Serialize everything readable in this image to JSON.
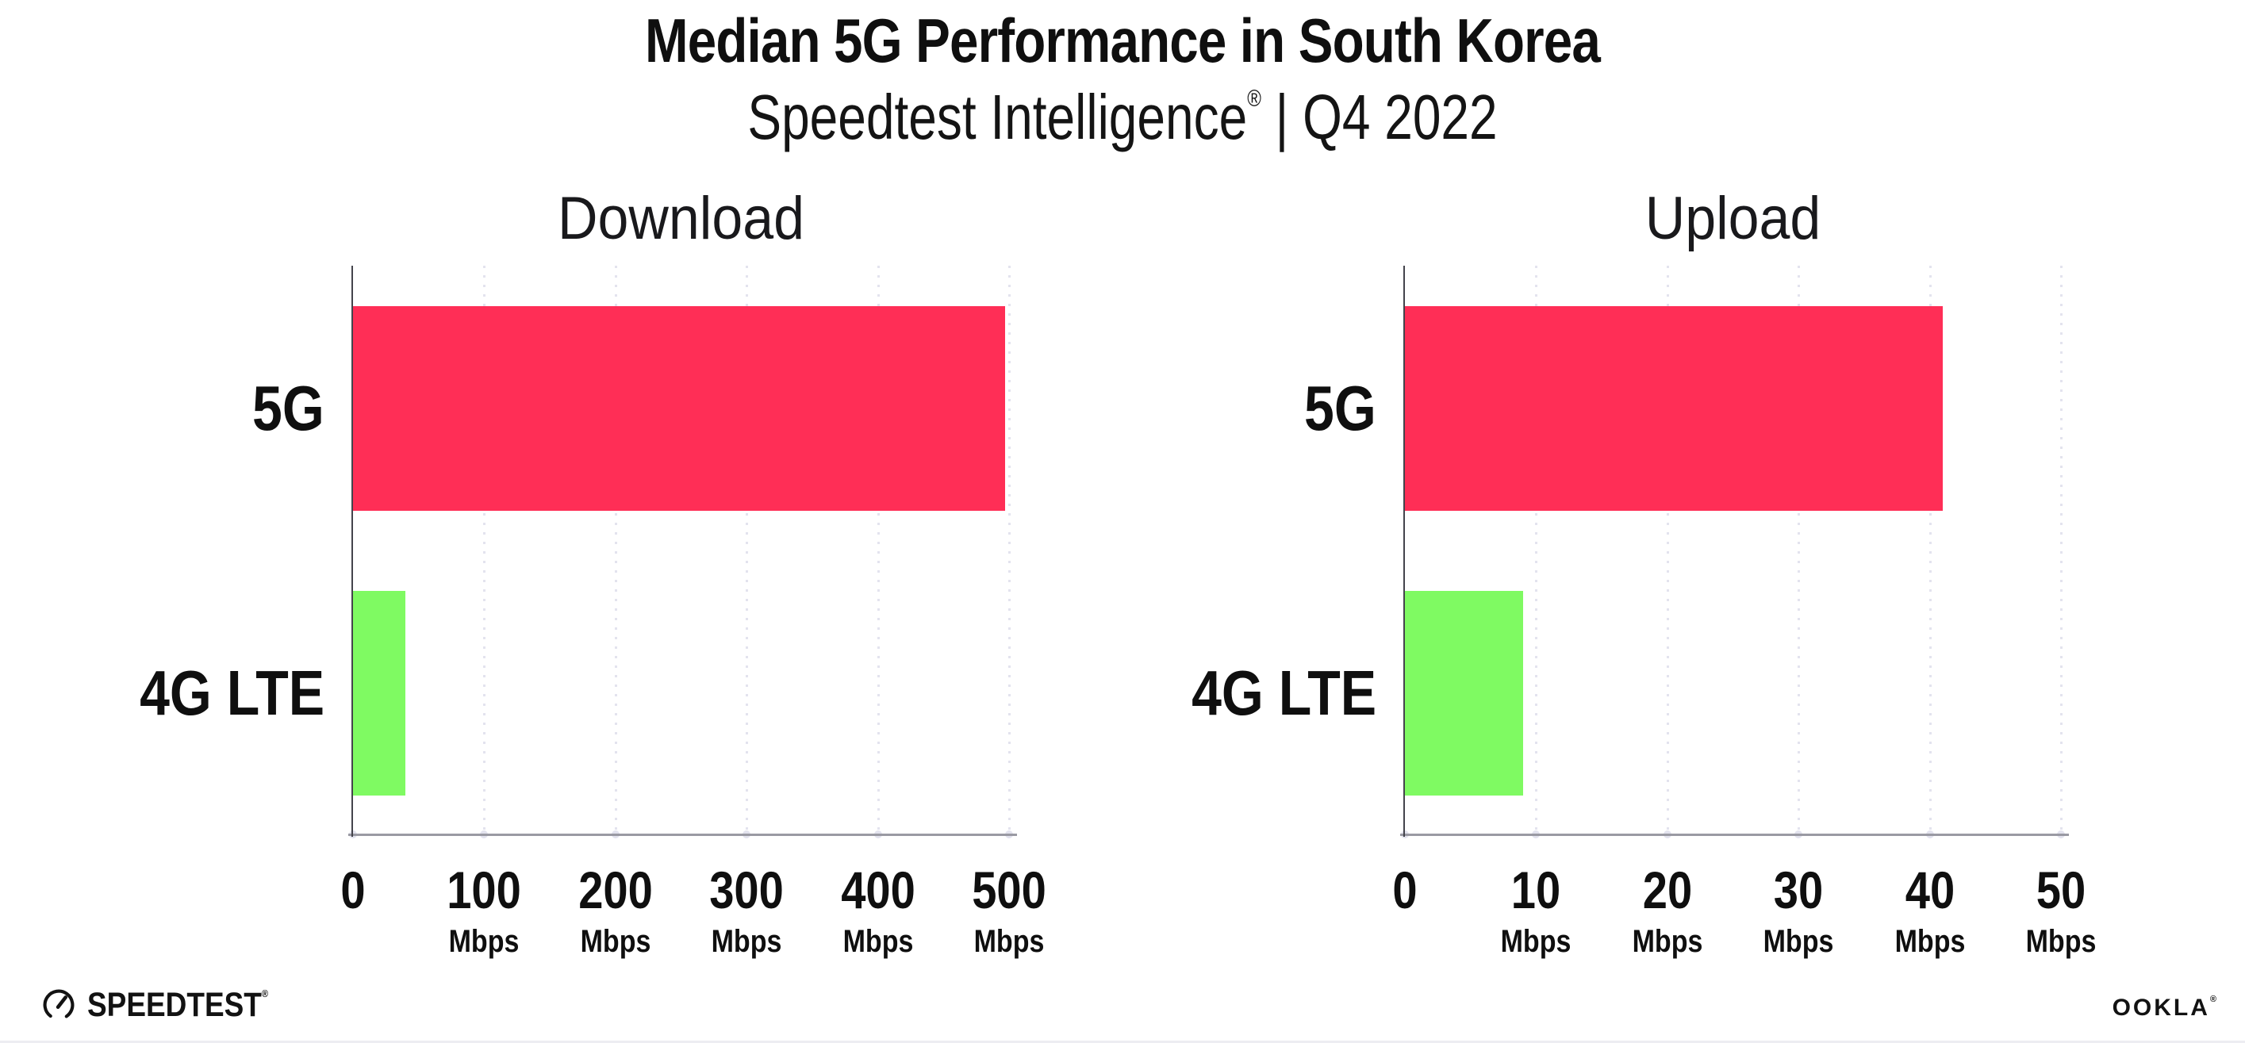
{
  "header": {
    "title": "Median 5G Performance in South Korea",
    "subtitle_main": "Speedtest Intelligence",
    "subtitle_reg": "®",
    "subtitle_rest": " | Q4 2022"
  },
  "chart_data": [
    {
      "type": "bar",
      "orientation": "horizontal",
      "title": "Download",
      "categories": [
        "5G",
        "4G LTE"
      ],
      "values": [
        497,
        40
      ],
      "unit": "Mbps",
      "xlim": [
        0,
        500
      ],
      "ticks": [
        0,
        100,
        200,
        300,
        400,
        500
      ],
      "bar_colors": [
        "#FF2E56",
        "#7FFA62"
      ],
      "grid": "dotted-vertical",
      "legend": "none"
    },
    {
      "type": "bar",
      "orientation": "horizontal",
      "title": "Upload",
      "categories": [
        "5G",
        "4G LTE"
      ],
      "values": [
        41,
        9
      ],
      "unit": "Mbps",
      "xlim": [
        0,
        50
      ],
      "ticks": [
        0,
        10,
        20,
        30,
        40,
        50
      ],
      "bar_colors": [
        "#FF2E56",
        "#7FFA62"
      ],
      "grid": "dotted-vertical",
      "legend": "none"
    }
  ],
  "colors": {
    "bar_5g": "#FF2E56",
    "bar_4g_lte": "#7FFA62",
    "gridline": "#E3E3EE",
    "x_axis": "#9A9AA3",
    "y_axis": "#44444C",
    "text": "#0F0F0F"
  },
  "footer": {
    "speedtest_label": "SPEEDTEST",
    "speedtest_reg": "®",
    "gauge_icon": "speedtest-gauge-icon",
    "ookla_label": "OOKLA",
    "ookla_reg": "®"
  }
}
